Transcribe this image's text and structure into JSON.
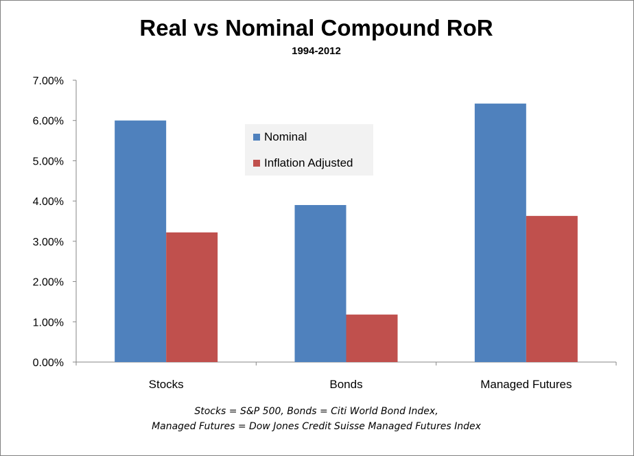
{
  "chart_data": {
    "type": "bar",
    "title": "Real vs Nominal Compound RoR",
    "subtitle": "1994-2012",
    "categories": [
      "Stocks",
      "Bonds",
      "Managed Futures"
    ],
    "series": [
      {
        "name": "Nominal",
        "color": "#4f81bd",
        "values": [
          0.06,
          0.039,
          0.0642
        ]
      },
      {
        "name": "Inflation Adjusted",
        "color": "#c0504d",
        "values": [
          0.0322,
          0.0118,
          0.0363
        ]
      }
    ],
    "ylim": [
      0,
      0.07
    ],
    "yticks": [
      "0.00%",
      "1.00%",
      "2.00%",
      "3.00%",
      "4.00%",
      "5.00%",
      "6.00%",
      "7.00%"
    ],
    "xlabel": "",
    "ylabel": "",
    "grid": false,
    "legend_position": "inside-top-center"
  },
  "footnote": {
    "line1": "Stocks = S&P 500, Bonds = Citi World Bond Index,",
    "line2": "Managed Futures = Dow Jones Credit Suisse Managed Futures Index"
  }
}
